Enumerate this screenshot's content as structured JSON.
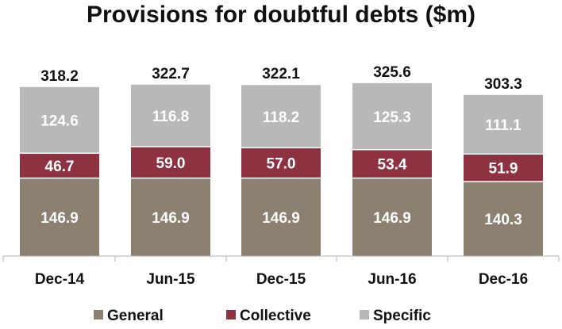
{
  "chart_data": {
    "type": "bar",
    "stacked": true,
    "title": "Provisions for doubtful debts ($m)",
    "categories": [
      "Dec-14",
      "Jun-15",
      "Dec-15",
      "Jun-16",
      "Dec-16"
    ],
    "series": [
      {
        "name": "General",
        "color": "#8c8170",
        "values": [
          146.9,
          146.9,
          146.9,
          146.9,
          140.3
        ]
      },
      {
        "name": "Collective",
        "color": "#8e3140",
        "values": [
          46.7,
          59.0,
          57.0,
          53.4,
          51.9
        ]
      },
      {
        "name": "Specific",
        "color": "#b9b8b9",
        "values": [
          124.6,
          116.8,
          118.2,
          125.3,
          111.1
        ]
      }
    ],
    "totals": [
      318.2,
      322.7,
      322.1,
      325.6,
      303.3
    ],
    "grid": false,
    "legend": "bottom"
  }
}
